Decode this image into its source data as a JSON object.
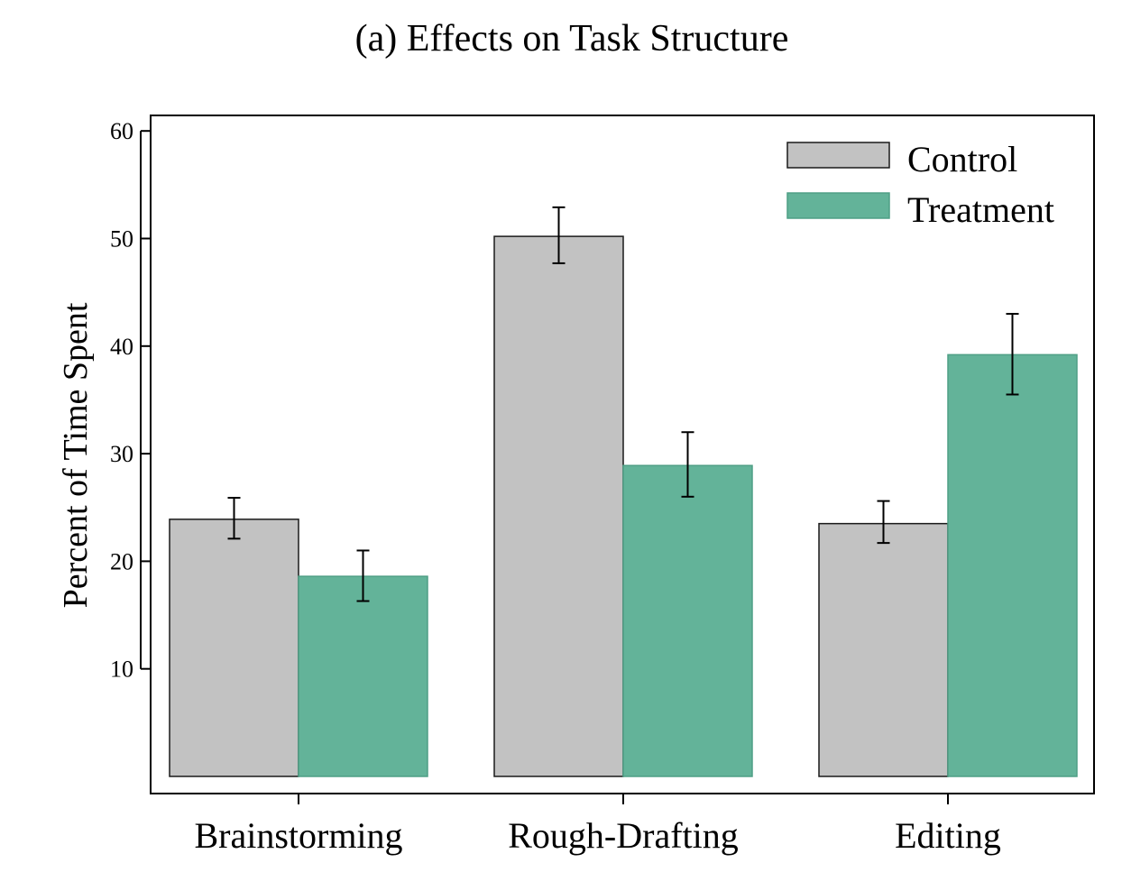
{
  "chart_data": {
    "type": "bar",
    "title": "(a) Effects on Task Structure",
    "xlabel": "",
    "ylabel": "Percent of Time Spent",
    "categories": [
      "Brainstorming",
      "Rough-Drafting",
      "Editing"
    ],
    "series": [
      {
        "name": "Control",
        "color": "#c2c2c2",
        "stroke": "#1a1a1a",
        "values": [
          23.9,
          50.2,
          23.5
        ],
        "err_low": [
          22.1,
          47.7,
          21.7
        ],
        "err_high": [
          25.9,
          52.9,
          25.6
        ]
      },
      {
        "name": "Treatment",
        "color": "#63b399",
        "stroke": "#4f9f85",
        "values": [
          18.6,
          28.9,
          39.2
        ],
        "err_low": [
          16.3,
          26.0,
          35.5
        ],
        "err_high": [
          21.0,
          32.0,
          43.0
        ]
      }
    ],
    "ylim": [
      0,
      61.7
    ],
    "yticks": [
      10,
      20,
      30,
      40,
      50,
      60
    ],
    "grid": false,
    "legend": "top-right"
  }
}
